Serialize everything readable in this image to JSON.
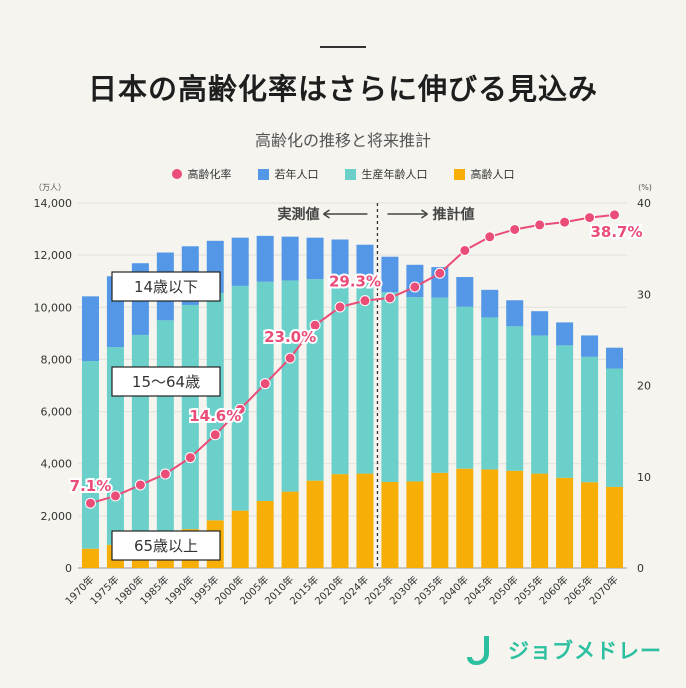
{
  "header": {
    "title": "日本の高齢化率はさらに伸びる見込み",
    "subtitle": "高齢化の推移と将来推計"
  },
  "colors": {
    "young": "#5497e6",
    "working": "#6bcfca",
    "elderly": "#f7ae07",
    "rate": "#ea4d78",
    "brand": "#2cc0a0"
  },
  "chart_data": {
    "type": "bar",
    "stacked": true,
    "categories": [
      "1970年",
      "1975年",
      "1980年",
      "1985年",
      "1990年",
      "1995年",
      "2000年",
      "2005年",
      "2010年",
      "2015年",
      "2020年",
      "2024年",
      "2025年",
      "2030年",
      "2035年",
      "2040年",
      "2045年",
      "2050年",
      "2055年",
      "2060年",
      "2065年",
      "2070年"
    ],
    "series": [
      {
        "name": "高齢人口",
        "values": [
          740,
          890,
          1060,
          1250,
          1490,
          1830,
          2200,
          2570,
          2930,
          3350,
          3600,
          3620,
          3300,
          3320,
          3650,
          3810,
          3780,
          3730,
          3620,
          3460,
          3290,
          3110
        ]
      },
      {
        "name": "生産年齢人口",
        "values": [
          7200,
          7580,
          7880,
          8250,
          8600,
          8720,
          8620,
          8410,
          8100,
          7730,
          7500,
          7360,
          7280,
          7070,
          6720,
          6210,
          5830,
          5540,
          5300,
          5080,
          4810,
          4540
        ]
      },
      {
        "name": "若年人口",
        "values": [
          2480,
          2720,
          2750,
          2600,
          2250,
          2000,
          1850,
          1760,
          1680,
          1590,
          1500,
          1420,
          1360,
          1240,
          1170,
          1140,
          1060,
          1000,
          930,
          880,
          820,
          800
        ]
      },
      {
        "name": "高齢化率",
        "axis": "right",
        "values": [
          7.1,
          7.9,
          9.1,
          10.3,
          12.1,
          14.6,
          17.4,
          20.2,
          23.0,
          26.6,
          28.6,
          29.3,
          29.6,
          30.8,
          32.3,
          34.8,
          36.3,
          37.1,
          37.6,
          37.9,
          38.4,
          38.7
        ]
      }
    ],
    "left_axis": {
      "unit": "（万人）",
      "ylim": [
        0,
        14000
      ],
      "ticks": [
        "0",
        "2,000",
        "4,000",
        "6,000",
        "8,000",
        "10,000",
        "12,000",
        "14,000"
      ]
    },
    "right_axis": {
      "unit": "(%)",
      "ylim": [
        0,
        40
      ],
      "ticks": [
        "0",
        "10",
        "20",
        "30",
        "40"
      ]
    },
    "rate_labels": [
      {
        "index": 0,
        "text": "7.1%"
      },
      {
        "index": 5,
        "text": "14.6%"
      },
      {
        "index": 8,
        "text": "23.0%"
      },
      {
        "index": 11,
        "text": "29.3%"
      },
      {
        "index": 21,
        "text": "38.7%"
      }
    ],
    "legend": [
      "高齢化率",
      "若年人口",
      "生産年齢人口",
      "高齢人口"
    ],
    "divider": {
      "after_index": 11,
      "left_text": "実測値",
      "right_text": "推計値"
    },
    "annotations": [
      "14歳以下",
      "15～64歳",
      "65歳以上"
    ]
  },
  "brand": {
    "name": "ジョブメドレー"
  }
}
